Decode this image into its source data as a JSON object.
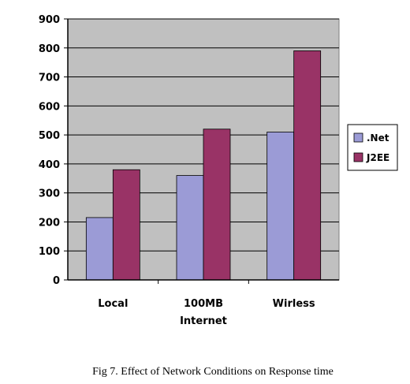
{
  "chart_data": {
    "type": "bar",
    "title": "",
    "xlabel": "",
    "ylabel": "",
    "categories": [
      "Local",
      "100MB Internet",
      "Wirless"
    ],
    "category_lines": [
      [
        "Local"
      ],
      [
        "100MB",
        "Internet"
      ],
      [
        "Wirless"
      ]
    ],
    "series": [
      {
        "name": ".Net",
        "values": [
          215,
          360,
          510
        ],
        "color": "#9b9bd6"
      },
      {
        "name": "J2EE",
        "values": [
          380,
          520,
          790
        ],
        "color": "#993366"
      }
    ],
    "ylim": [
      0,
      900
    ],
    "yticks": [
      "0",
      "100",
      "200",
      "300",
      "400",
      "500",
      "600",
      "700",
      "800",
      "900"
    ],
    "grid": true,
    "plot_background": "#c0c0c0",
    "legend_position": "right"
  },
  "caption": "Fig 7. Effect of Network Conditions on Response time"
}
